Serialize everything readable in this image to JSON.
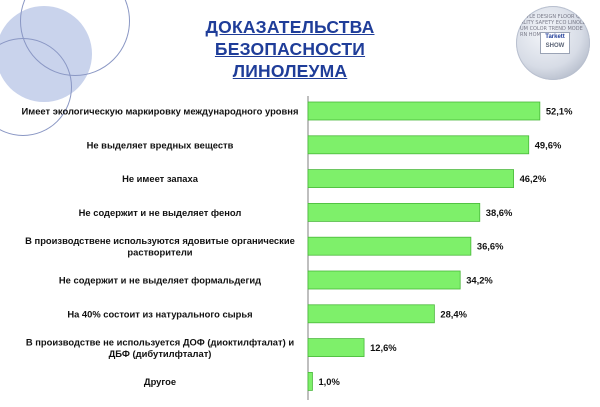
{
  "header": {
    "title_line1": "ДОКАЗАТЕЛЬСТВА БЕЗОПАСНОСТИ",
    "title_line2": "ЛИНОЛЕУМА"
  },
  "logo": {
    "line1": "Tarkett",
    "line2": "SHOW"
  },
  "colors": {
    "bar_fill": "#7ef06a",
    "bar_stroke": "#49b83a",
    "axis": "#7f7f7f",
    "title": "#1f3d99"
  },
  "chart_data": {
    "type": "bar",
    "orientation": "horizontal",
    "categories": [
      [
        "Имеет экологическую маркировку международного уровня"
      ],
      [
        "Не выделяет вредных веществ"
      ],
      [
        "Не имеет запаха"
      ],
      [
        "Не содержит и не выделяет фенол"
      ],
      [
        "В производствене используются ядовитые органические",
        "растворители"
      ],
      [
        "Не содержит и не выделяет формальдегид"
      ],
      [
        "На 40% состоит из натурального сырья"
      ],
      [
        "В производстве   не используется ДОФ (диоктилфталат) и",
        "ДБФ (дибутилфталат)"
      ],
      [
        "Другое"
      ]
    ],
    "values": [
      52.1,
      49.6,
      46.2,
      38.6,
      36.6,
      34.2,
      28.4,
      12.6,
      1.0
    ],
    "value_labels": [
      "52,1%",
      "49,6%",
      "46,2%",
      "38,6%",
      "36,6%",
      "34,2%",
      "28,4%",
      "12,6%",
      "1,0%"
    ],
    "xlim": [
      0,
      60
    ]
  }
}
